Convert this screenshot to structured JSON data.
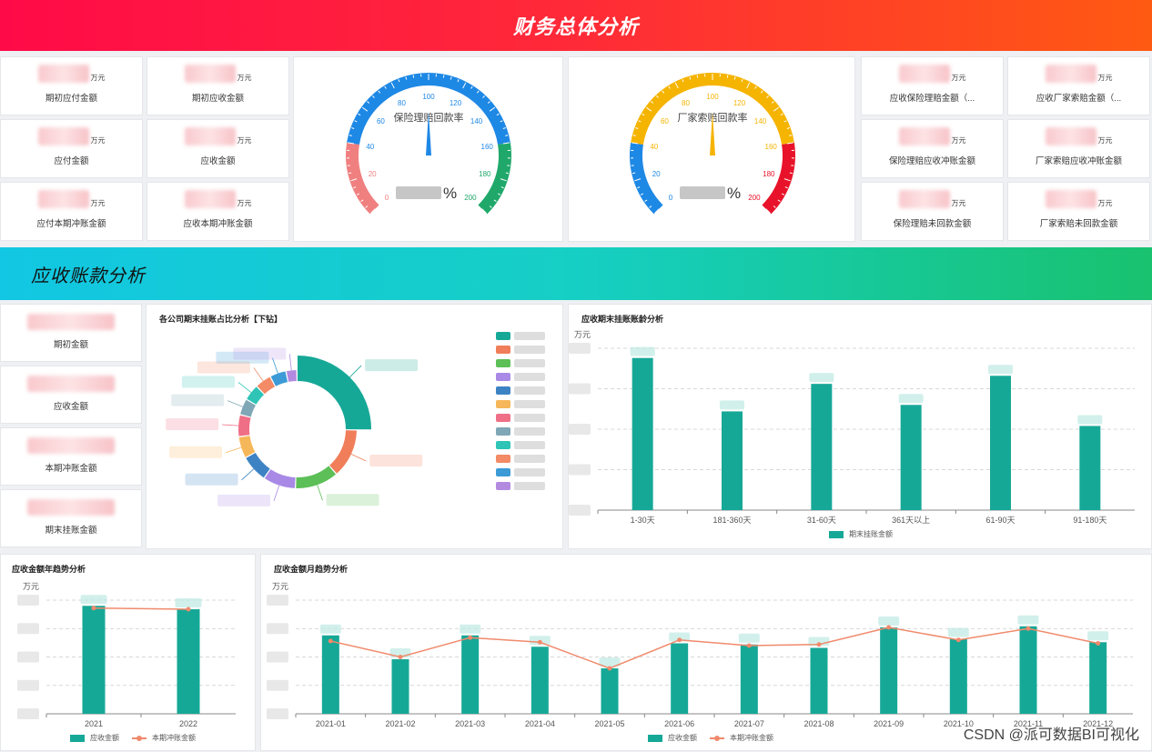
{
  "header": {
    "title": "财务总体分析"
  },
  "section2": {
    "title": "应收账款分析"
  },
  "kpi_left": [
    {
      "label": "期初应付金额",
      "unit": "万元"
    },
    {
      "label": "期初应收金额",
      "unit": "万元"
    },
    {
      "label": "应付金额",
      "unit": "万元"
    },
    {
      "label": "应收金额",
      "unit": "万元"
    },
    {
      "label": "应付本期冲账金额",
      "unit": "万元"
    },
    {
      "label": "应收本期冲账金额",
      "unit": "万元"
    }
  ],
  "kpi_right": [
    {
      "label": "应收保险理赔金额（...",
      "unit": "万元"
    },
    {
      "label": "应收厂家索赔金额（...",
      "unit": "万元"
    },
    {
      "label": "保险理赔应收冲账金额",
      "unit": "万元"
    },
    {
      "label": "厂家索赔应收冲账金额",
      "unit": "万元"
    },
    {
      "label": "保险理赔未回款金额",
      "unit": "万元"
    },
    {
      "label": "厂家索赔未回款金额",
      "unit": "万元"
    }
  ],
  "gauges": [
    {
      "name": "保险理赔回款率",
      "percent_sign": "%",
      "min": 0,
      "max": 200,
      "ticks": [
        "0",
        "20",
        "40",
        "60",
        "80",
        "100",
        "120",
        "140",
        "160",
        "180",
        "200"
      ],
      "colors": {
        "low": "#f08080",
        "mid": "#1e88e5",
        "high": "#20a86a"
      },
      "pointer_value": 100
    },
    {
      "name": "厂家索赔回款率",
      "percent_sign": "%",
      "min": 0,
      "max": 200,
      "ticks": [
        "0",
        "20",
        "40",
        "60",
        "80",
        "100",
        "120",
        "140",
        "160",
        "180",
        "200"
      ],
      "colors": {
        "low": "#1e88e5",
        "mid": "#f5b400",
        "high": "#e8132a"
      },
      "pointer_value": 100
    }
  ],
  "ar_kpis": [
    {
      "label": "期初金额"
    },
    {
      "label": "应收金额"
    },
    {
      "label": "本期冲账金额"
    },
    {
      "label": "期末挂账金额"
    }
  ],
  "donut": {
    "title": "各公司期末挂账占比分析【下钻】",
    "colors": [
      "#16a897",
      "#f07e5a",
      "#5cbf57",
      "#a889e6",
      "#3d83c4",
      "#f6b75a",
      "#ef6f86",
      "#7fa7b5",
      "#2ec4b6",
      "#f28b66",
      "#3c9bd6",
      "#b28be0"
    ]
  },
  "bar_chart": {
    "title": "应收期末挂账账龄分析",
    "unit": "万元",
    "legend": "期末挂账金额"
  },
  "year_chart": {
    "title": "应收金额年趋势分析",
    "unit": "万元",
    "legend_bar": "应收金额",
    "legend_line": "本期冲账金额"
  },
  "month_chart": {
    "title": "应收金额月趋势分析",
    "unit": "万元",
    "legend_bar": "应收金额",
    "legend_line": "本期冲账金额"
  },
  "chart_data": [
    {
      "type": "bar",
      "title": "应收期末挂账账龄分析",
      "ylabel": "万元",
      "categories": [
        "1-30天",
        "181-360天",
        "31-60天",
        "361天以上",
        "61-90天",
        "91-180天"
      ],
      "series": [
        {
          "name": "期末挂账金额",
          "values": [
            94,
            61,
            78,
            65,
            83,
            52
          ]
        }
      ],
      "ylim": [
        0,
        100
      ],
      "legend": "bottom",
      "color": "#16a897"
    },
    {
      "type": "bar",
      "title": "应收金额年趋势分析",
      "ylabel": "万元",
      "categories": [
        "2021",
        "2022"
      ],
      "series": [
        {
          "name": "应收金额",
          "values": [
            95,
            92
          ]
        },
        {
          "name": "本期冲账金额",
          "values": [
            93,
            92
          ]
        }
      ],
      "ylim": [
        0,
        100
      ],
      "legend": "bottom"
    },
    {
      "type": "bar",
      "title": "应收金额月趋势分析",
      "ylabel": "万元",
      "categories": [
        "2021-01",
        "2021-02",
        "2021-03",
        "2021-04",
        "2021-05",
        "2021-06",
        "2021-07",
        "2021-08",
        "2021-09",
        "2021-10",
        "2021-11",
        "2021-12"
      ],
      "series": [
        {
          "name": "应收金额",
          "values": [
            69,
            48,
            69,
            59,
            40,
            62,
            61,
            58,
            76,
            66,
            77,
            63
          ]
        },
        {
          "name": "本期冲账金额",
          "values": [
            64,
            50,
            67,
            63,
            40,
            65,
            60,
            61,
            76,
            65,
            75,
            62
          ]
        }
      ],
      "ylim": [
        0,
        100
      ],
      "legend": "bottom"
    },
    {
      "type": "pie",
      "title": "各公司期末挂账占比分析【下钻】",
      "values": [
        17,
        9,
        8,
        6,
        5,
        4,
        4,
        3,
        3,
        3,
        3,
        2
      ]
    }
  ],
  "watermark": "CSDN @派可数据BI可视化"
}
